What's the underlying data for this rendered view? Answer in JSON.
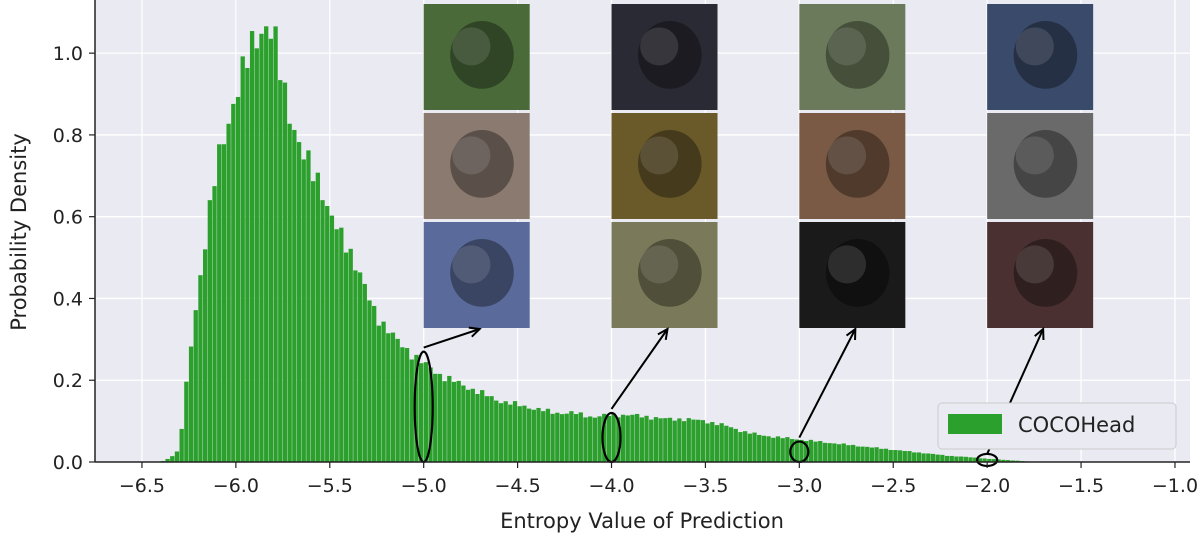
{
  "chart_data": {
    "type": "bar",
    "xlabel": "Entropy Value of Prediction",
    "ylabel": "Probability Density",
    "xlim": [
      -6.75,
      -0.92
    ],
    "ylim": [
      0,
      1.13
    ],
    "x_ticks": [
      -6.5,
      -6.0,
      -5.5,
      -5.0,
      -4.5,
      -4.0,
      -3.5,
      -3.0,
      -2.5,
      -2.0,
      -1.5,
      -1.0
    ],
    "x_tick_labels": [
      "−6.5",
      "−6.0",
      "−5.5",
      "−5.0",
      "−4.5",
      "−4.0",
      "−3.5",
      "−3.0",
      "−2.5",
      "−2.0",
      "−1.5",
      "−1.0"
    ],
    "y_ticks": [
      0.0,
      0.2,
      0.4,
      0.6,
      0.8,
      1.0
    ],
    "y_tick_labels": [
      "0.0",
      "0.2",
      "0.4",
      "0.6",
      "0.8",
      "1.0"
    ],
    "grid": true,
    "bar_color": "#2ca02c",
    "background": "#eaeaf2",
    "legend": {
      "position": "bottom-right",
      "entries": [
        "COCOHead"
      ]
    },
    "bin_width": 0.025,
    "series": [
      {
        "name": "COCOHead",
        "x": [
          -6.4,
          -6.35,
          -6.3,
          -6.25,
          -6.2,
          -6.15,
          -6.1,
          -6.05,
          -6.0,
          -5.95,
          -5.9,
          -5.85,
          -5.8,
          -5.75,
          -5.7,
          -5.65,
          -5.6,
          -5.55,
          -5.5,
          -5.45,
          -5.4,
          -5.35,
          -5.3,
          -5.25,
          -5.2,
          -5.15,
          -5.1,
          -5.05,
          -5.0,
          -4.9,
          -4.8,
          -4.7,
          -4.6,
          -4.5,
          -4.4,
          -4.3,
          -4.2,
          -4.1,
          -4.0,
          -3.9,
          -3.8,
          -3.7,
          -3.6,
          -3.5,
          -3.4,
          -3.3,
          -3.2,
          -3.1,
          -3.0,
          -2.9,
          -2.8,
          -2.7,
          -2.6,
          -2.5,
          -2.4,
          -2.3,
          -2.2,
          -2.1,
          -2.0,
          -1.9,
          -1.8,
          -1.75
        ],
        "values": [
          0.0,
          0.01,
          0.03,
          0.24,
          0.42,
          0.58,
          0.72,
          0.82,
          0.9,
          0.96,
          1.04,
          1.07,
          1.04,
          0.93,
          0.84,
          0.75,
          0.72,
          0.69,
          0.6,
          0.56,
          0.53,
          0.47,
          0.41,
          0.36,
          0.33,
          0.3,
          0.28,
          0.26,
          0.24,
          0.21,
          0.19,
          0.17,
          0.15,
          0.14,
          0.13,
          0.12,
          0.12,
          0.11,
          0.115,
          0.115,
          0.11,
          0.105,
          0.105,
          0.1,
          0.09,
          0.075,
          0.065,
          0.06,
          0.055,
          0.05,
          0.045,
          0.04,
          0.035,
          0.03,
          0.025,
          0.02,
          0.015,
          0.012,
          0.008,
          0.005,
          0.002,
          0.0
        ]
      }
    ],
    "annotations": [
      {
        "type": "ellipse",
        "x": -5.0,
        "y_low": 0.0,
        "y_high": 0.27
      },
      {
        "type": "ellipse",
        "x": -4.0,
        "y_low": 0.0,
        "y_high": 0.12
      },
      {
        "type": "ellipse",
        "x": -3.0,
        "y_low": 0.0,
        "y_high": 0.05
      },
      {
        "type": "ellipse",
        "x": -2.0,
        "y_low": 0.0,
        "y_high": 0.01
      }
    ],
    "thumbnail_columns": [
      {
        "x": -5.0,
        "description": "head crops at entropy -5.0",
        "tones": [
          "#4a6a3a",
          "#8a7a70",
          "#5a6a9a"
        ]
      },
      {
        "x": -4.0,
        "description": "head crops at entropy -4.0",
        "tones": [
          "#2a2a34",
          "#6a5a2a",
          "#7a7a5a"
        ]
      },
      {
        "x": -3.0,
        "description": "head crops at entropy -3.0",
        "tones": [
          "#6a7a5a",
          "#7a5a44",
          "#1a1a1a"
        ]
      },
      {
        "x": -2.0,
        "description": "head crops at entropy -2.0",
        "tones": [
          "#3a4a6a",
          "#6a6a6a",
          "#4a3030"
        ]
      }
    ]
  }
}
